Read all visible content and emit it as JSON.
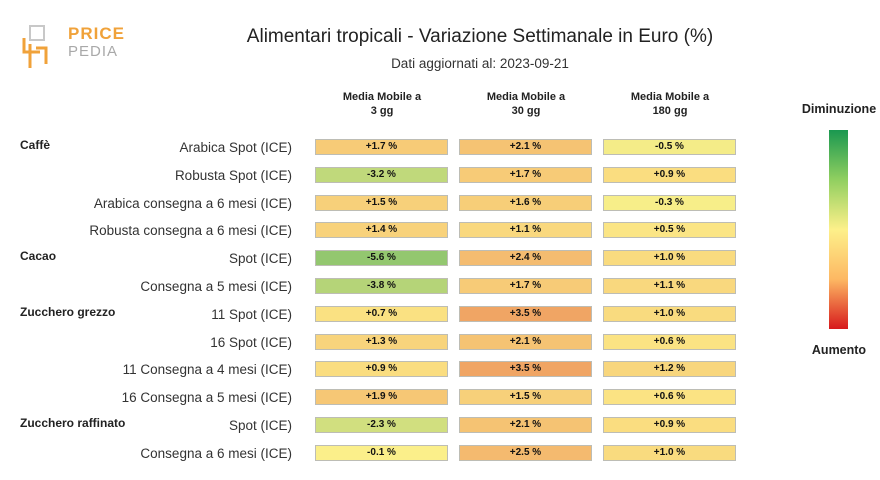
{
  "logo": {
    "line1": "PRICE",
    "line2": "PEDIA"
  },
  "chart_data": {
    "type": "table",
    "title": "Alimentari tropicali - Variazione Settimanale in Euro (%)",
    "subtitle": "Dati aggiornati al: 2023-09-21",
    "columns": [
      "Media Mobile a 3 gg",
      "Media Mobile a 30 gg",
      "Media Mobile a 180 gg"
    ],
    "rows": [
      {
        "group": "Caffè",
        "label": "Arabica Spot (ICE)",
        "values": [
          "+1.7 %",
          "+2.1 %",
          "-0.5 %"
        ]
      },
      {
        "group": "",
        "label": "Robusta Spot (ICE)",
        "values": [
          "-3.2 %",
          "+1.7 %",
          "+0.9 %"
        ]
      },
      {
        "group": "",
        "label": "Arabica consegna a 6 mesi (ICE)",
        "values": [
          "+1.5 %",
          "+1.6 %",
          "-0.3 %"
        ]
      },
      {
        "group": "",
        "label": "Robusta consegna a 6 mesi (ICE)",
        "values": [
          "+1.4 %",
          "+1.1 %",
          "+0.5 %"
        ]
      },
      {
        "group": "Cacao",
        "label": "Spot (ICE)",
        "values": [
          "-5.6 %",
          "+2.4 %",
          "+1.0 %"
        ]
      },
      {
        "group": "",
        "label": "Consegna a 5 mesi (ICE)",
        "values": [
          "-3.8 %",
          "+1.7 %",
          "+1.1 %"
        ]
      },
      {
        "group": "Zucchero grezzo",
        "label": "11 Spot (ICE)",
        "values": [
          "+0.7 %",
          "+3.5 %",
          "+1.0 %"
        ]
      },
      {
        "group": "",
        "label": "16 Spot (ICE)",
        "values": [
          "+1.3 %",
          "+2.1 %",
          "+0.6 %"
        ]
      },
      {
        "group": "",
        "label": "11 Consegna a 4 mesi (ICE)",
        "values": [
          "+0.9 %",
          "+3.5 %",
          "+1.2 %"
        ]
      },
      {
        "group": "",
        "label": "16 Consegna a 5 mesi (ICE)",
        "values": [
          "+1.9 %",
          "+1.5 %",
          "+0.6 %"
        ]
      },
      {
        "group": "Zucchero raffinato",
        "label": "Spot (ICE)",
        "values": [
          "-2.3 %",
          "+2.1 %",
          "+0.9 %"
        ]
      },
      {
        "group": "",
        "label": "Consegna a 6 mesi (ICE)",
        "values": [
          "-0.1 %",
          "+2.5 %",
          "+1.0 %"
        ]
      }
    ],
    "legend": {
      "top": "Diminuzione",
      "bottom": "Aumento",
      "placement": "right"
    },
    "colors": {
      "decrease": "#1a9850",
      "neutral": "#fdf08a",
      "increase": "#d7191c"
    }
  }
}
